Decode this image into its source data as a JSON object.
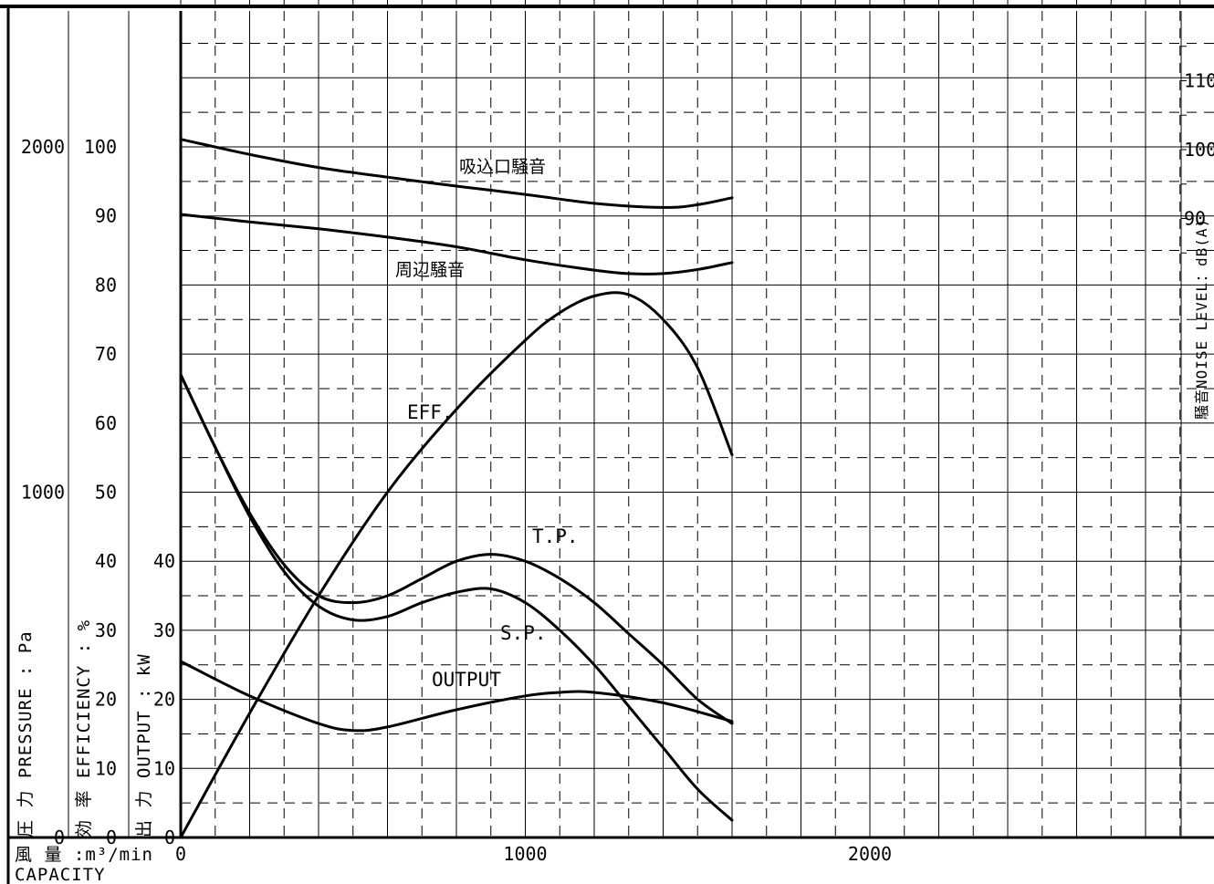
{
  "chart_data": {
    "type": "line",
    "x_axis": {
      "label_jp": "風 量 :m³/min",
      "label_en": "CAPACITY",
      "ticks": [
        0,
        1000,
        2000
      ],
      "range": [
        0,
        3000
      ],
      "grid_step": 100
    },
    "pressure_axis": {
      "label": "圧 力 PRESSURE : Pa",
      "ticks": [
        0,
        1000,
        2000
      ],
      "range": [
        0,
        2400
      ]
    },
    "efficiency_axis": {
      "label": "効 率 EFFICIENCY : %",
      "ticks": [
        0,
        10,
        20,
        30,
        40,
        50,
        60,
        70,
        80,
        90,
        100
      ],
      "range": [
        0,
        120
      ]
    },
    "output_axis": {
      "label": "出 力 OUTPUT : kW",
      "ticks": [
        0,
        10,
        20,
        30,
        40
      ],
      "range": [
        0,
        120
      ]
    },
    "noise_axis": {
      "label": "騒音NOISE LEVEL：dB(A)",
      "ticks": [
        90,
        100,
        110
      ],
      "range": [
        80,
        120
      ]
    },
    "series": [
      {
        "name": "吸込口騒音",
        "axis": "noise",
        "x": [
          0,
          200,
          400,
          600,
          800,
          1000,
          1200,
          1400,
          1500,
          1600
        ],
        "y": [
          101.5,
          99.3,
          97.4,
          96.0,
          94.7,
          93.5,
          92.2,
          91.6,
          92.0,
          93.0
        ]
      },
      {
        "name": "周辺騒音",
        "axis": "noise",
        "x": [
          0,
          200,
          400,
          600,
          800,
          1000,
          1200,
          1300,
          1400,
          1500,
          1600
        ],
        "y": [
          90.6,
          89.5,
          88.5,
          87.3,
          85.9,
          84.0,
          82.5,
          82.0,
          82.0,
          82.6,
          83.6
        ]
      },
      {
        "name": "EFF.",
        "axis": "efficiency",
        "x": [
          0,
          200,
          400,
          600,
          800,
          1000,
          1100,
          1200,
          1300,
          1400,
          1500,
          1600
        ],
        "y": [
          0,
          18,
          35,
          50,
          62,
          72,
          76,
          78.4,
          78.6,
          75.0,
          68.0,
          55.4
        ]
      },
      {
        "name": "T.P.",
        "axis": "pressure",
        "x": [
          0,
          100,
          200,
          300,
          400,
          500,
          600,
          700,
          800,
          900,
          1000,
          1100,
          1200,
          1300,
          1400,
          1500,
          1600
        ],
        "y": [
          1340,
          1130,
          940,
          790,
          700,
          680,
          700,
          750,
          800,
          820,
          800,
          750,
          680,
          590,
          500,
          400,
          330
        ]
      },
      {
        "name": "S.P.",
        "axis": "pressure",
        "x": [
          0,
          100,
          200,
          300,
          400,
          500,
          600,
          700,
          800,
          900,
          1000,
          1100,
          1200,
          1300,
          1400,
          1500,
          1600
        ],
        "y": [
          1340,
          1130,
          930,
          770,
          670,
          630,
          640,
          680,
          710,
          720,
          680,
          600,
          500,
          380,
          260,
          140,
          50
        ]
      },
      {
        "name": "OUTPUT",
        "axis": "output",
        "x": [
          0,
          200,
          400,
          500,
          600,
          800,
          1000,
          1100,
          1200,
          1400,
          1600
        ],
        "y": [
          25.5,
          20.5,
          16.5,
          15.5,
          16.0,
          18.5,
          20.5,
          21.0,
          21.0,
          19.5,
          16.8
        ]
      }
    ],
    "grid": true
  }
}
